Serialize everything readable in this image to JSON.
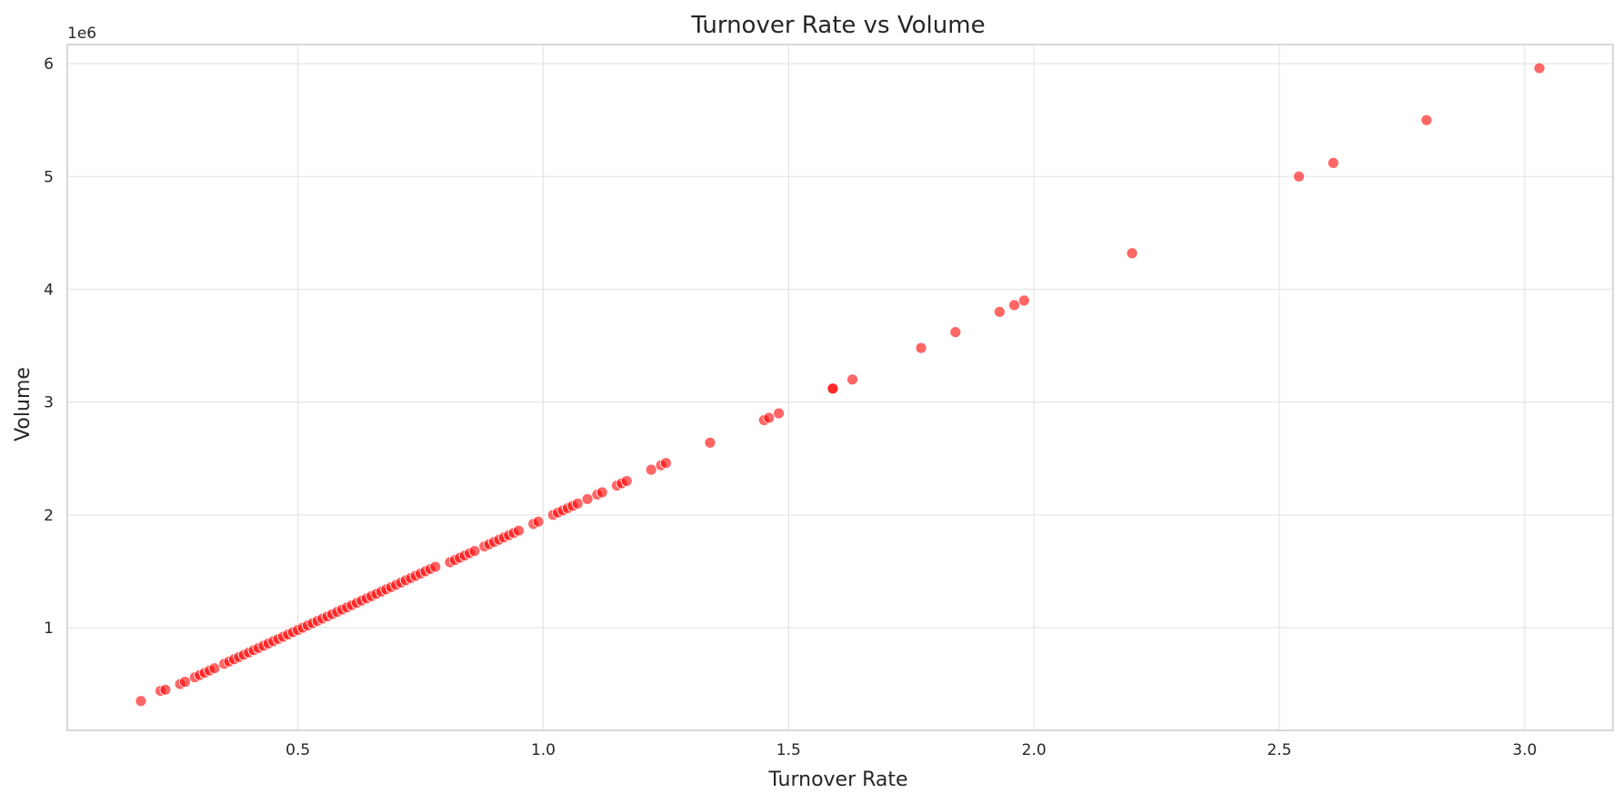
{
  "chart_data": {
    "type": "scatter",
    "title": "Turnover Rate vs Volume",
    "xlabel": "Turnover Rate",
    "ylabel": "Volume",
    "y_offset_label": "1e6",
    "xlim": [
      0.03,
      3.18
    ],
    "ylim": [
      0.09,
      6.17
    ],
    "x_ticks": [
      0.5,
      1.0,
      1.5,
      2.0,
      2.5,
      3.0
    ],
    "x_tick_labels": [
      "0.5",
      "1.0",
      "1.5",
      "2.0",
      "2.5",
      "3.0"
    ],
    "y_ticks": [
      1,
      2,
      3,
      4,
      5,
      6
    ],
    "y_tick_labels": [
      "1",
      "2",
      "3",
      "4",
      "5",
      "6"
    ],
    "y_scale_note": "values in units of 1e6",
    "grid": true,
    "marker_color": "#ff0000",
    "marker_alpha": 0.6,
    "series": [
      {
        "x": [
          0.18,
          0.22,
          0.23,
          0.26,
          0.27,
          0.29,
          0.3,
          0.31,
          0.32,
          0.33,
          0.35,
          0.36,
          0.37,
          0.38,
          0.39,
          0.4,
          0.41,
          0.42,
          0.43,
          0.44,
          0.45,
          0.46,
          0.47,
          0.48,
          0.49,
          0.5,
          0.51,
          0.52,
          0.53,
          0.54,
          0.55,
          0.56,
          0.57,
          0.58,
          0.59,
          0.6,
          0.61,
          0.62,
          0.63,
          0.64,
          0.65,
          0.66,
          0.67,
          0.68,
          0.69,
          0.7,
          0.71,
          0.72,
          0.73,
          0.74,
          0.75,
          0.76,
          0.77,
          0.78,
          0.81,
          0.82,
          0.83,
          0.84,
          0.85,
          0.86,
          0.88,
          0.89,
          0.9,
          0.91,
          0.92,
          0.93,
          0.94,
          0.95,
          0.98,
          0.99,
          1.02,
          1.03,
          1.04,
          1.05,
          1.06,
          1.07,
          1.09,
          1.11,
          1.12,
          1.15,
          1.16,
          1.17,
          1.22,
          1.24,
          1.25,
          1.34,
          1.45,
          1.46,
          1.48,
          1.59,
          1.59,
          1.63,
          1.77,
          1.84,
          1.93,
          1.96,
          1.98,
          2.2,
          2.54,
          2.61,
          2.8,
          3.03
        ],
        "y": [
          0.35,
          0.44,
          0.45,
          0.5,
          0.52,
          0.56,
          0.58,
          0.6,
          0.62,
          0.64,
          0.68,
          0.7,
          0.72,
          0.74,
          0.76,
          0.78,
          0.8,
          0.82,
          0.84,
          0.86,
          0.88,
          0.9,
          0.92,
          0.94,
          0.96,
          0.98,
          1.0,
          1.02,
          1.04,
          1.06,
          1.08,
          1.1,
          1.12,
          1.14,
          1.16,
          1.18,
          1.2,
          1.22,
          1.24,
          1.26,
          1.28,
          1.3,
          1.32,
          1.34,
          1.36,
          1.38,
          1.4,
          1.42,
          1.44,
          1.46,
          1.48,
          1.5,
          1.52,
          1.54,
          1.58,
          1.6,
          1.62,
          1.64,
          1.66,
          1.68,
          1.72,
          1.74,
          1.76,
          1.78,
          1.8,
          1.82,
          1.84,
          1.86,
          1.92,
          1.94,
          2.0,
          2.02,
          2.04,
          2.06,
          2.08,
          2.1,
          2.14,
          2.18,
          2.2,
          2.26,
          2.28,
          2.3,
          2.4,
          2.44,
          2.46,
          2.64,
          2.84,
          2.86,
          2.9,
          3.12,
          3.12,
          3.2,
          3.48,
          3.62,
          3.8,
          3.86,
          3.9,
          4.32,
          5.0,
          5.12,
          5.5,
          5.96
        ]
      }
    ]
  }
}
